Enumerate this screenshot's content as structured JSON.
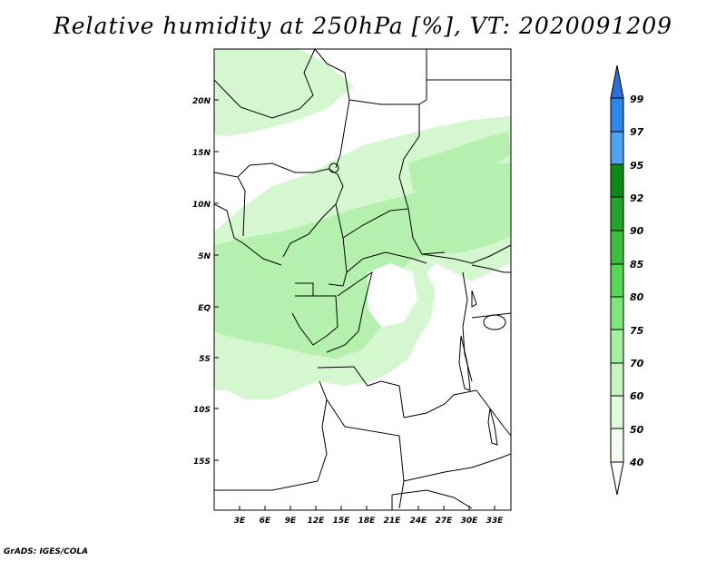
{
  "title": "Relative humidity at 250hPa [%], VT: 2020091209",
  "credit": "GrADS: IGES/COLA",
  "lat_labels": [
    "20N",
    "15N",
    "10N",
    "5N",
    "EQ",
    "5S",
    "10S",
    "15S"
  ],
  "lon_labels": [
    "3E",
    "6E",
    "9E",
    "12E",
    "15E",
    "18E",
    "21E",
    "24E",
    "27E",
    "30E",
    "33E"
  ],
  "colorbar": {
    "levels": [
      "99",
      "97",
      "95",
      "92",
      "90",
      "85",
      "80",
      "75",
      "70",
      "60",
      "50",
      "40"
    ],
    "colors": [
      "#2a6fdb",
      "#2f86ea",
      "#4ea3f0",
      "#0f8a14",
      "#22a32a",
      "#3cbc3c",
      "#55d655",
      "#7ce67c",
      "#a2f0a0",
      "#c4f6c0",
      "#e0fadc",
      "#f2fdf0"
    ]
  },
  "colors": {
    "light_green": "#d4f7cf",
    "mid_green": "#b6f0ae",
    "border": "#000000"
  }
}
